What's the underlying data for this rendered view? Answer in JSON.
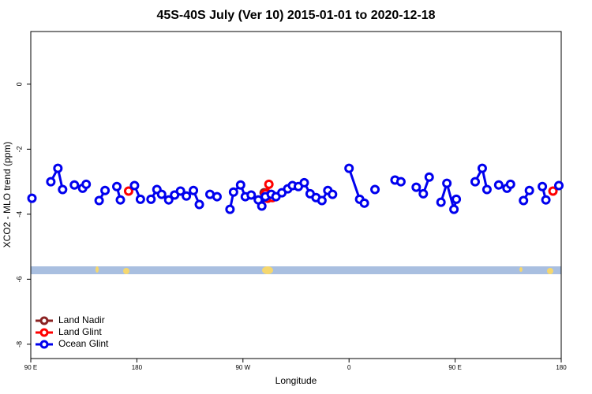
{
  "chart_data": {
    "type": "line",
    "title": "45S-40S July (Ver 10)   2015-01-01 to 2020-12-18",
    "xlabel": "Longitude",
    "ylabel": "XCO2 - MLO trend (ppm)",
    "xlim": [
      90,
      540
    ],
    "ylim": [
      -8.44,
      1.62
    ],
    "xticks": [
      {
        "value": 90,
        "label": "90 E"
      },
      180,
      {
        "value": 270,
        "label": "90 W"
      },
      {
        "value": 360,
        "label": "0"
      },
      {
        "value": 450,
        "label": "90 E"
      },
      {
        "value": 540,
        "label": "180"
      }
    ],
    "yticks": [
      0,
      -2,
      -4,
      -6,
      -8
    ],
    "legend": "bottom-left",
    "series": [
      {
        "name": "Land Nadir",
        "color": "#8b2323",
        "x": [
          288
        ],
        "values": [
          -3.34
        ]
      },
      {
        "name": "Land Glint",
        "color": "#ff0000",
        "x": [
          173,
          null,
          289,
          292,
          291,
          295,
          null,
          533
        ],
        "values": [
          -3.29,
          null,
          -3.37,
          -3.08,
          -3.51,
          -3.49,
          null,
          -3.29
        ]
      },
      {
        "name": "Ocean Glint",
        "color": "#0000ee",
        "x": [
          91,
          null,
          107,
          113,
          117,
          null,
          127,
          134,
          137,
          null,
          148,
          153,
          null,
          163,
          166,
          null,
          178,
          183,
          null,
          192,
          197,
          201,
          207,
          212,
          217,
          222,
          228,
          233,
          null,
          242,
          248,
          null,
          259,
          262,
          268,
          272,
          277,
          283,
          286,
          289,
          294,
          298,
          303,
          308,
          312,
          317,
          322,
          327,
          332,
          337,
          342,
          346,
          null,
          360,
          369,
          373,
          null,
          382,
          null,
          399,
          404,
          null,
          417,
          423,
          428,
          null,
          438,
          443,
          449,
          451,
          null,
          467,
          473,
          477,
          null,
          487,
          494,
          497,
          null,
          508,
          513,
          null,
          524,
          527,
          null,
          538
        ],
        "values": [
          -3.51,
          null,
          -3.0,
          -2.59,
          -3.24,
          null,
          -3.1,
          -3.2,
          -3.08,
          null,
          -3.58,
          -3.27,
          null,
          -3.15,
          -3.56,
          null,
          -3.12,
          -3.54,
          null,
          -3.54,
          -3.24,
          -3.39,
          -3.56,
          -3.41,
          -3.29,
          -3.44,
          -3.27,
          -3.7,
          null,
          -3.39,
          -3.46,
          null,
          -3.85,
          -3.32,
          -3.1,
          -3.46,
          -3.41,
          -3.56,
          -3.75,
          -3.46,
          -3.39,
          -3.46,
          -3.34,
          -3.22,
          -3.12,
          -3.15,
          -3.03,
          -3.37,
          -3.49,
          -3.58,
          -3.27,
          -3.39,
          null,
          -2.59,
          -3.54,
          -3.66,
          null,
          -3.24,
          null,
          -2.95,
          -3.0,
          null,
          -3.17,
          -3.37,
          -2.86,
          null,
          -3.63,
          -3.05,
          -3.85,
          -3.54,
          null,
          -3.0,
          -2.59,
          -3.24,
          null,
          -3.1,
          -3.2,
          -3.08,
          null,
          -3.58,
          -3.27,
          null,
          -3.15,
          -3.56,
          null,
          -3.12
        ]
      }
    ]
  }
}
